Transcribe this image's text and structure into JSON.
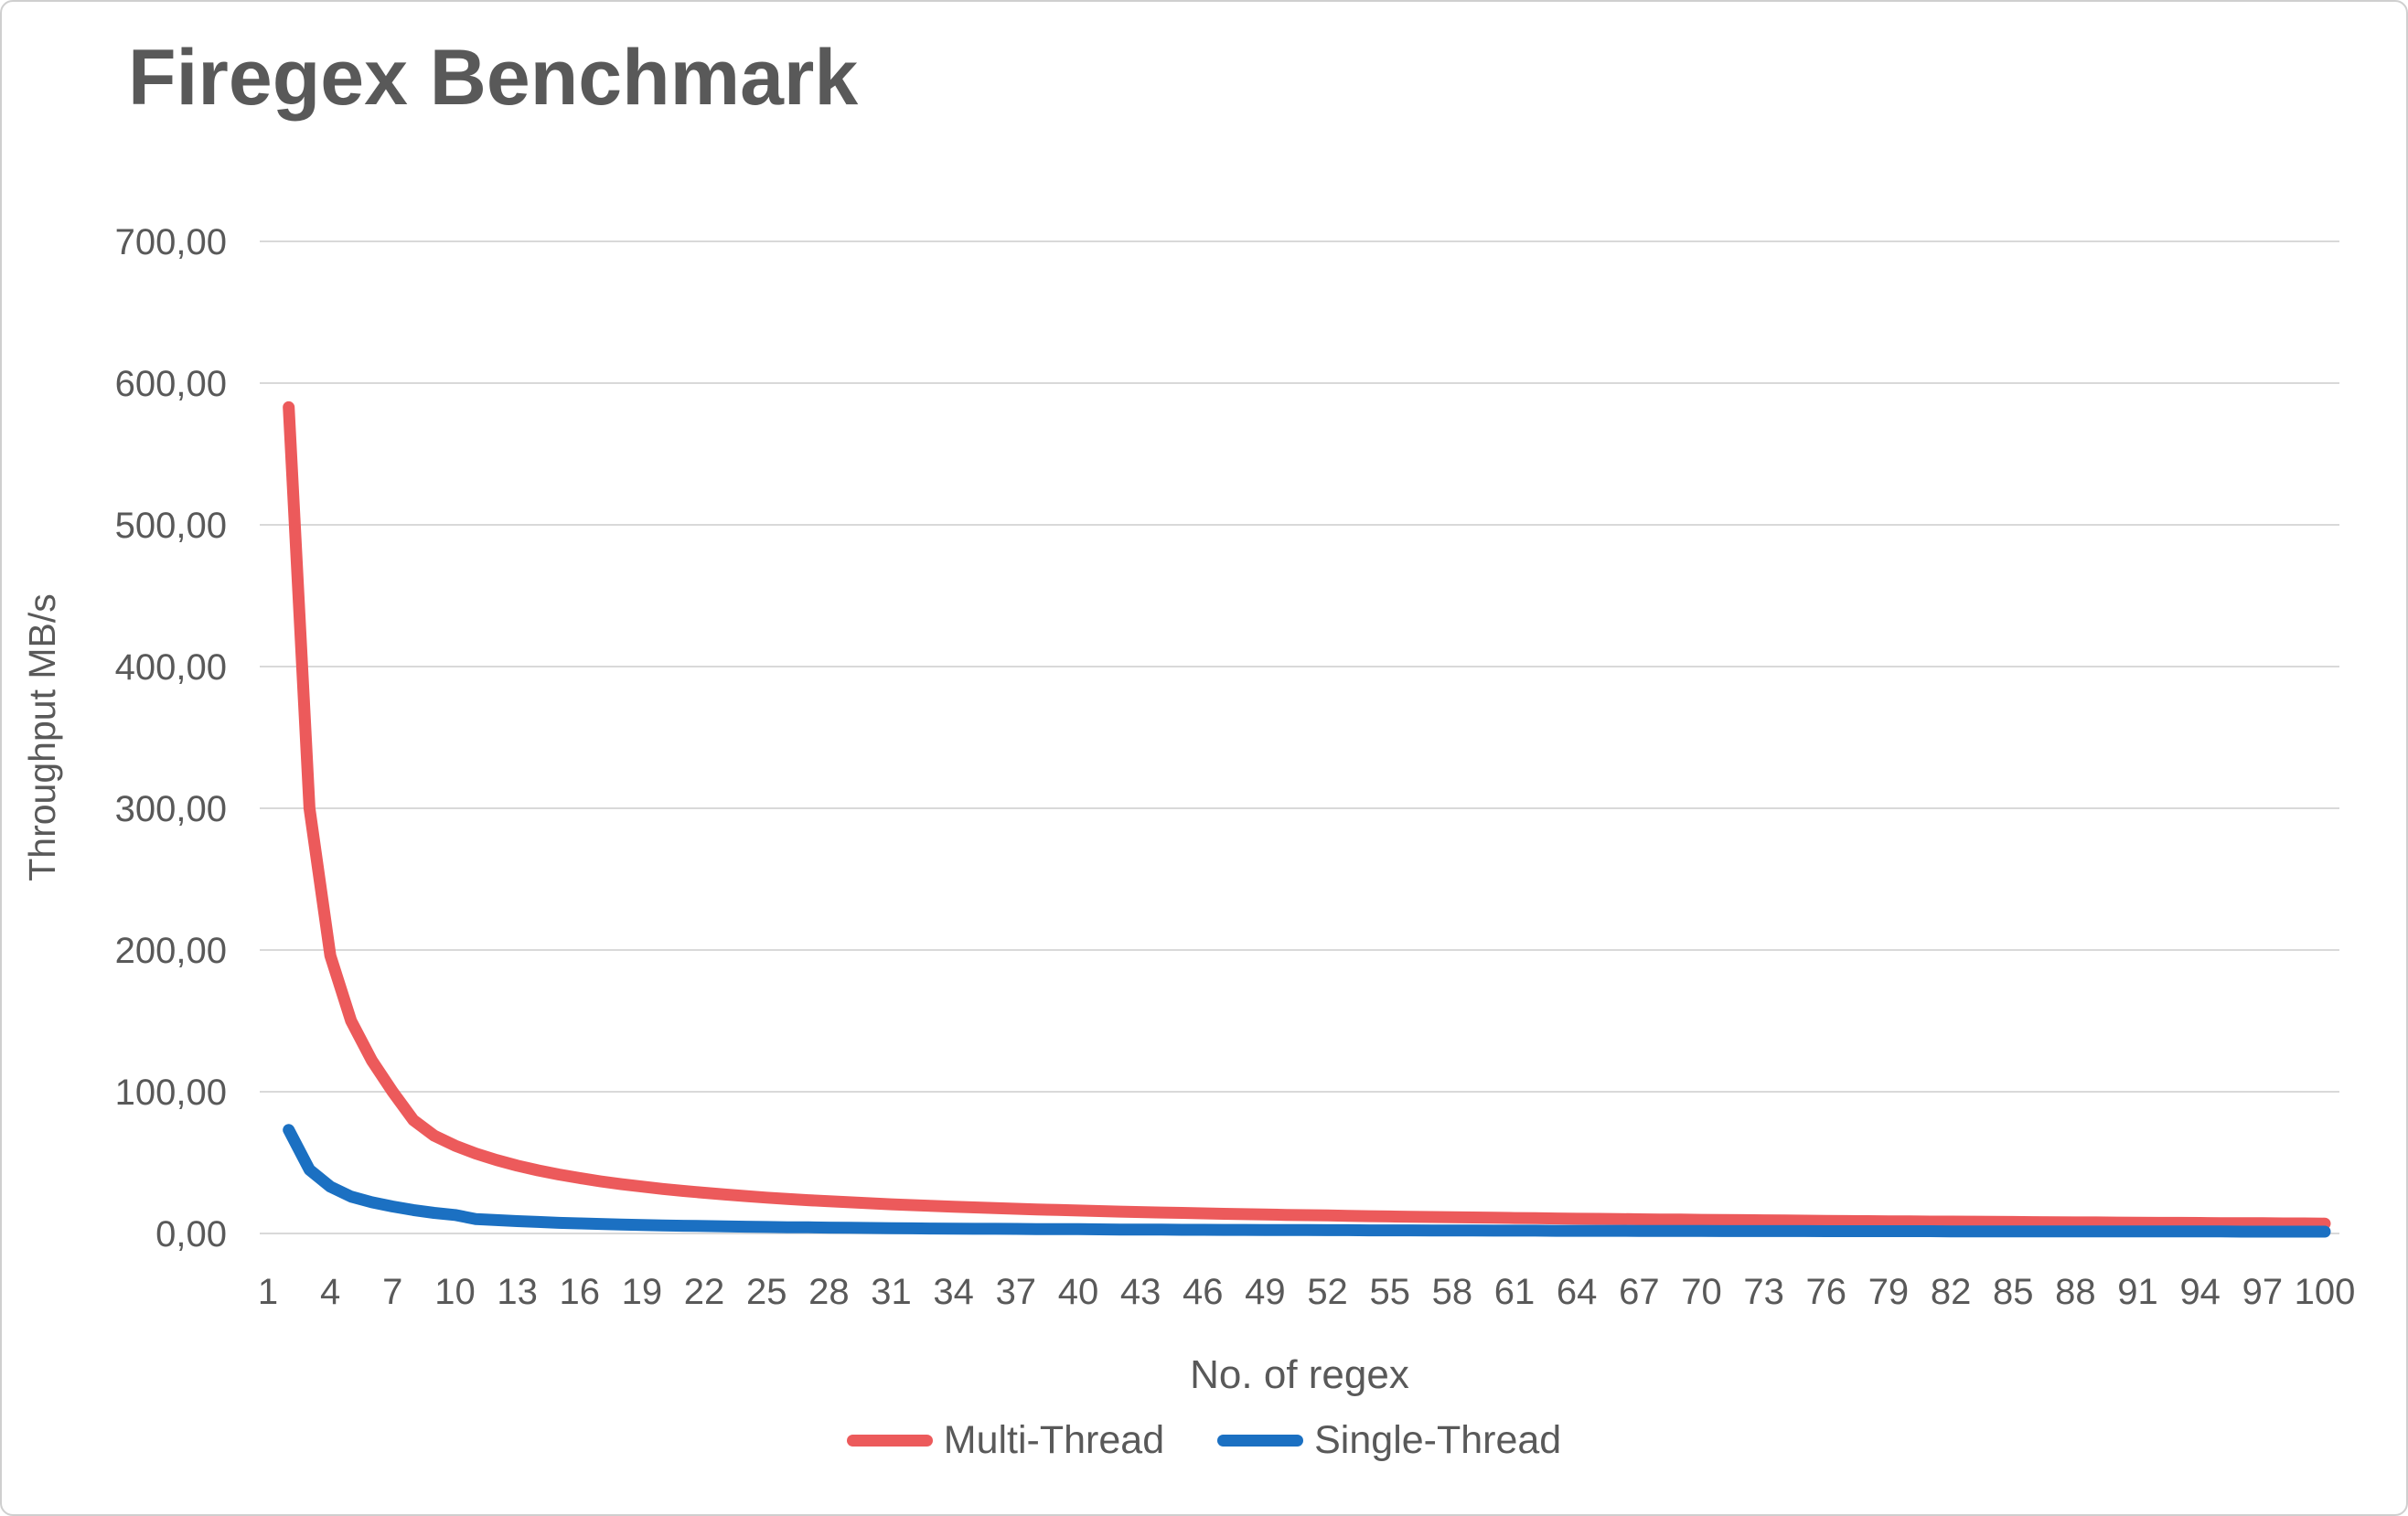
{
  "card": {
    "background": "#ffffff",
    "border_color": "#cfcfcf"
  },
  "chart_data": {
    "type": "line",
    "title": "Firegex Benchmark",
    "title_color": "#595959",
    "xlabel": "No. of regex",
    "ylabel": "Throughput MB/s",
    "xlim": [
      1,
      100
    ],
    "ylim": [
      0,
      700
    ],
    "grid": true,
    "grid_color": "#d9d9d9",
    "axis_text_color": "#595959",
    "legend_position": "bottom",
    "y_ticks": [
      {
        "value": 0,
        "label": "0,00"
      },
      {
        "value": 100,
        "label": "100,00"
      },
      {
        "value": 200,
        "label": "200,00"
      },
      {
        "value": 300,
        "label": "300,00"
      },
      {
        "value": 400,
        "label": "400,00"
      },
      {
        "value": 500,
        "label": "500,00"
      },
      {
        "value": 600,
        "label": "600,00"
      },
      {
        "value": 700,
        "label": "700,00"
      }
    ],
    "x_ticks": [
      1,
      4,
      7,
      10,
      13,
      16,
      19,
      22,
      25,
      28,
      31,
      34,
      37,
      40,
      43,
      46,
      49,
      52,
      55,
      58,
      61,
      64,
      67,
      70,
      73,
      76,
      79,
      82,
      85,
      88,
      91,
      94,
      97,
      100
    ],
    "series": [
      {
        "name": "Multi-Thread",
        "color": "#ec5a5b",
        "x_start": 2,
        "values": [
          583,
          300,
          196,
          150,
          122,
          100,
          80,
          69,
          62,
          56.4,
          51.8,
          47.9,
          44.5,
          41.6,
          39.1,
          36.8,
          34.8,
          33.1,
          31.4,
          30.0,
          28.7,
          27.5,
          26.4,
          25.3,
          24.4,
          23.5,
          22.7,
          22.0,
          21.3,
          20.6,
          20.0,
          19.4,
          18.9,
          18.4,
          17.9,
          17.4,
          17.0,
          16.6,
          16.2,
          15.8,
          15.4,
          15.1,
          14.8,
          14.5,
          14.2,
          13.9,
          13.6,
          13.4,
          13.1,
          12.9,
          12.7,
          12.4,
          12.2,
          12.0,
          11.8,
          11.6,
          11.4,
          11.3,
          11.1,
          10.9,
          10.8,
          10.6,
          10.4,
          10.3,
          10.2,
          10.0,
          9.9,
          9.8,
          9.6,
          9.5,
          9.4,
          9.3,
          9.2,
          9.0,
          8.9,
          8.8,
          8.7,
          8.6,
          8.5,
          8.4,
          8.4,
          8.3,
          8.2,
          8.1,
          8.0,
          7.9,
          7.8,
          7.8,
          7.7,
          7.6,
          7.5,
          7.5,
          7.4,
          7.3,
          7.3,
          7.2,
          7.1,
          7.1,
          7.0
        ]
      },
      {
        "name": "Single-Thread",
        "color": "#1b70c2",
        "x_start": 2,
        "values": [
          73,
          45,
          33,
          26,
          22,
          19,
          16.5,
          14.5,
          13,
          10.2,
          9.4,
          8.7,
          8.1,
          7.5,
          7.1,
          6.7,
          6.3,
          6.0,
          5.7,
          5.4,
          5.2,
          5.0,
          4.8,
          4.6,
          4.4,
          4.3,
          4.1,
          4.0,
          3.9,
          3.7,
          3.6,
          3.5,
          3.4,
          3.3,
          3.3,
          3.2,
          3.1,
          3.0,
          3.0,
          2.9,
          2.8,
          2.8,
          2.7,
          2.6,
          2.6,
          2.5,
          2.5,
          2.4,
          2.4,
          2.4,
          2.3,
          2.3,
          2.2,
          2.2,
          2.2,
          2.1,
          2.1,
          2.1,
          2.0,
          2.0,
          2.0,
          1.9,
          1.9,
          1.9,
          1.9,
          1.8,
          1.8,
          1.8,
          1.8,
          1.7,
          1.7,
          1.7,
          1.7,
          1.7,
          1.6,
          1.6,
          1.6,
          1.6,
          1.6,
          1.6,
          1.5,
          1.5,
          1.5,
          1.5,
          1.5,
          1.5,
          1.5,
          1.4,
          1.4,
          1.4,
          1.4,
          1.4,
          1.4,
          1.4,
          1.3,
          1.3,
          1.3,
          1.3,
          1.3
        ]
      }
    ]
  }
}
